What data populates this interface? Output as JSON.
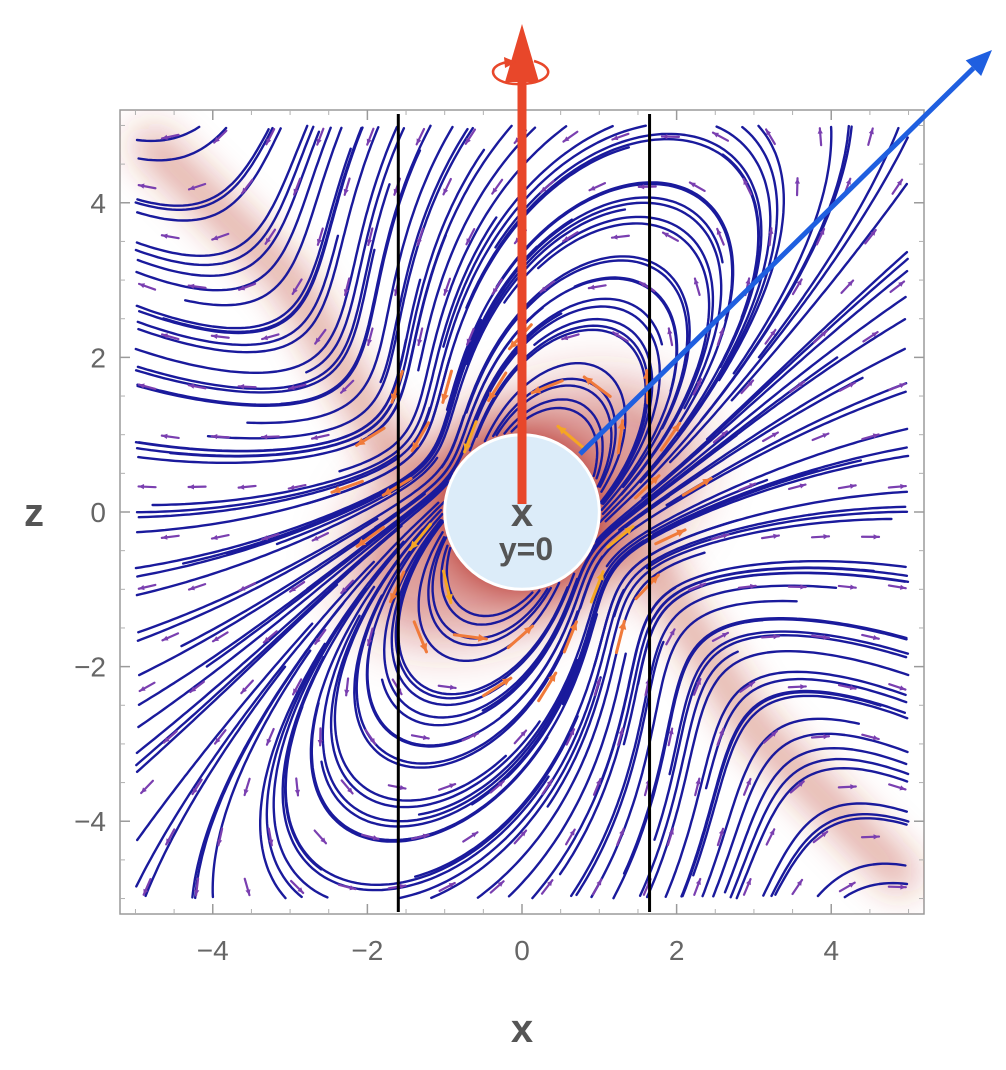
{
  "chart_data": {
    "type": "stream-density-plot",
    "xlabel": "x",
    "ylabel": "z",
    "xlim": [
      -5.2,
      5.2
    ],
    "ylim": [
      -5.2,
      5.2
    ],
    "x_ticks": [
      "−4",
      "−2",
      "0",
      "2",
      "4"
    ],
    "x_tick_values": [
      -4,
      -2,
      0,
      2,
      4
    ],
    "y_ticks": [
      "4",
      "2",
      "0",
      "−2",
      "−4"
    ],
    "y_tick_values": [
      4,
      2,
      0,
      -2,
      -4
    ],
    "center_marker": "x",
    "center_label": "y=0",
    "sphere_radius": 1.0,
    "vertical_lines_x": [
      -1.6,
      1.65
    ],
    "colors": {
      "streamline": "#1a1a9c",
      "arrow_far": "#7a3fb0",
      "arrow_near": "#f5a623",
      "density": "#b83028",
      "sphere_fill": "#dcecf9",
      "spin_axis": "#e8472a",
      "direction_vector": "#1f5fe0",
      "vertical_lines": "#000000"
    }
  }
}
